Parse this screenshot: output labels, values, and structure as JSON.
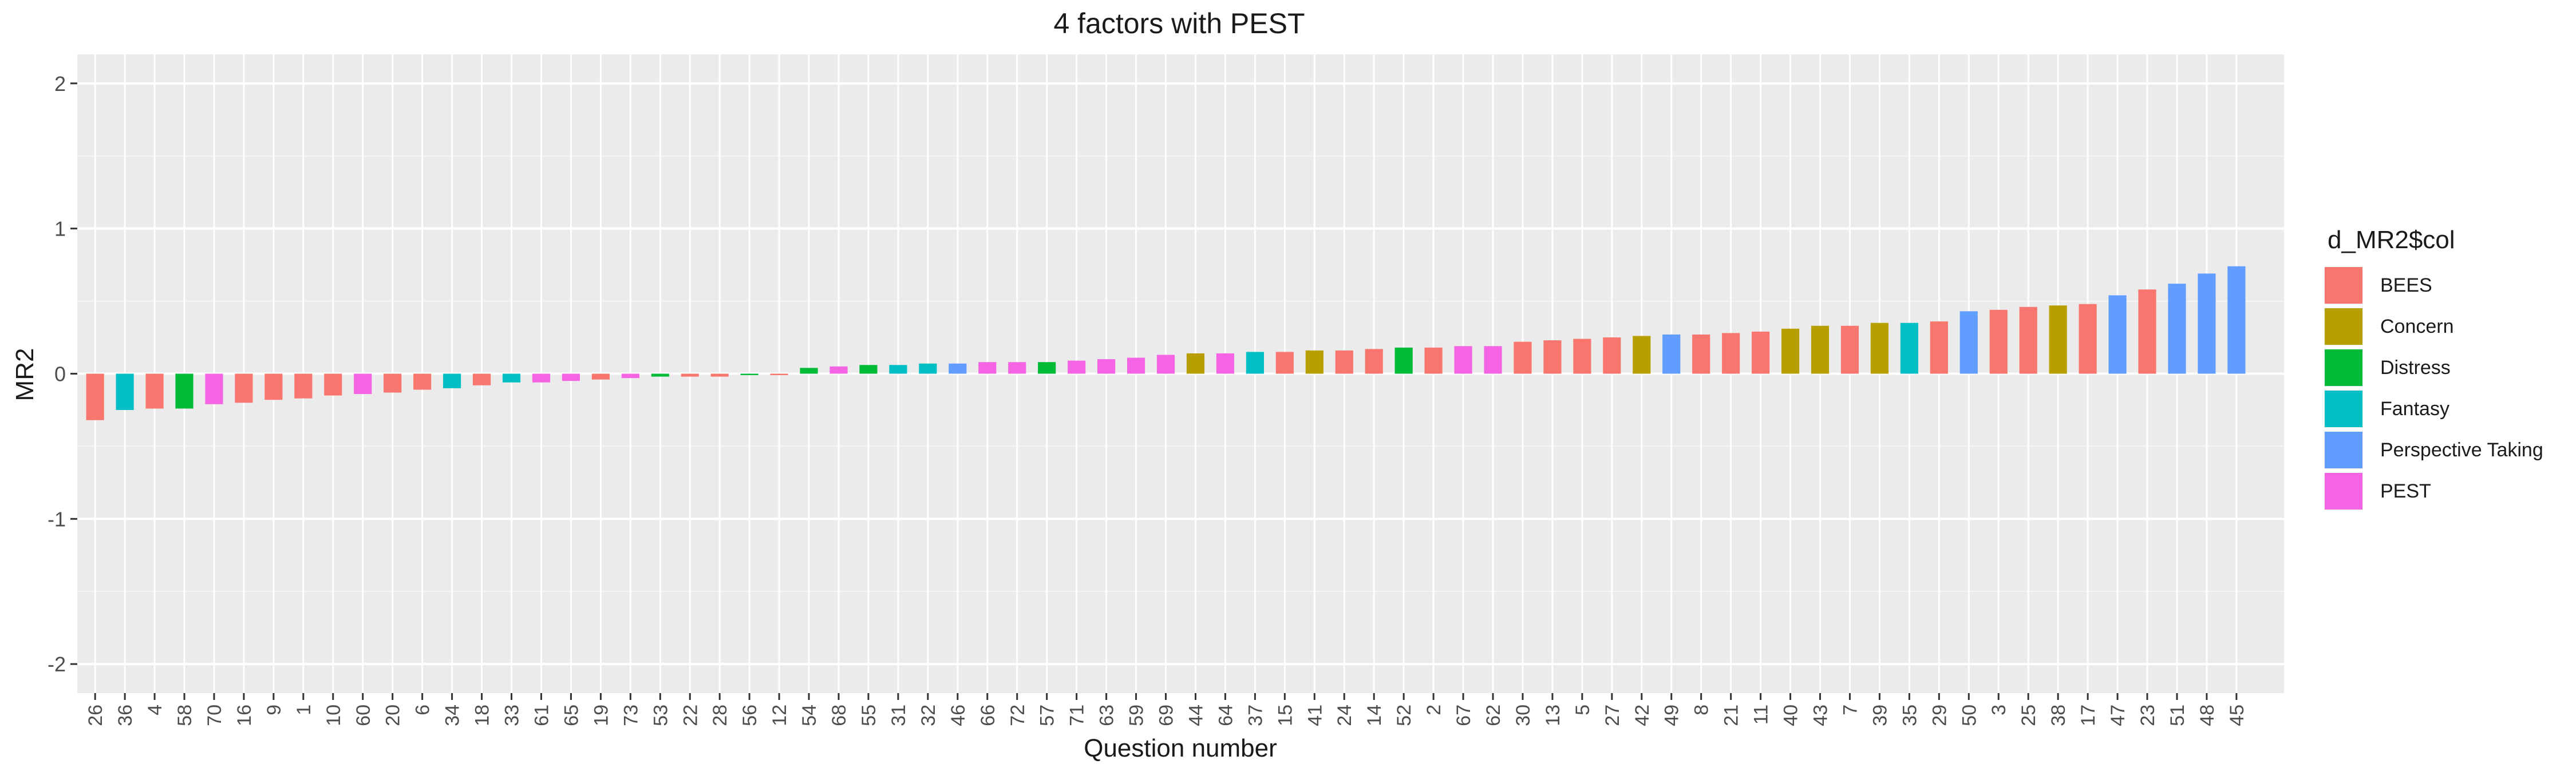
{
  "chart_data": {
    "type": "bar",
    "title": "4 factors with PEST",
    "xlabel": "Question number",
    "ylabel": "MR2",
    "ylim": [
      -2.2,
      2.2
    ],
    "y_ticks": [
      -2,
      -1,
      0,
      1,
      2
    ],
    "grid": true,
    "legend": {
      "title": "d_MR2$col",
      "placement": "right",
      "entries": [
        {
          "name": "BEES",
          "color": "#F8766D"
        },
        {
          "name": "Concern",
          "color": "#B79F00"
        },
        {
          "name": "Distress",
          "color": "#00BA38"
        },
        {
          "name": "Fantasy",
          "color": "#00BFC4"
        },
        {
          "name": "Perspective Taking",
          "color": "#619CFF"
        },
        {
          "name": "PEST",
          "color": "#F564E3"
        }
      ]
    },
    "categories": [
      "26",
      "36",
      "4",
      "58",
      "70",
      "16",
      "9",
      "1",
      "10",
      "60",
      "20",
      "6",
      "34",
      "18",
      "33",
      "61",
      "65",
      "19",
      "73",
      "53",
      "22",
      "28",
      "56",
      "12",
      "54",
      "68",
      "55",
      "31",
      "32",
      "46",
      "66",
      "72",
      "57",
      "71",
      "63",
      "59",
      "69",
      "44",
      "64",
      "37",
      "15",
      "41",
      "24",
      "14",
      "52",
      "2",
      "67",
      "62",
      "30",
      "13",
      "5",
      "27",
      "42",
      "49",
      "8",
      "21",
      "11",
      "40",
      "43",
      "7",
      "39",
      "35",
      "29",
      "50",
      "3",
      "25",
      "38",
      "17",
      "47",
      "23",
      "51",
      "48",
      "45"
    ],
    "values": [
      -0.32,
      -0.25,
      -0.24,
      -0.24,
      -0.21,
      -0.2,
      -0.18,
      -0.17,
      -0.15,
      -0.14,
      -0.13,
      -0.11,
      -0.1,
      -0.08,
      -0.06,
      -0.06,
      -0.05,
      -0.04,
      -0.03,
      -0.02,
      -0.02,
      -0.02,
      -0.01,
      -0.01,
      0.04,
      0.05,
      0.06,
      0.06,
      0.07,
      0.07,
      0.08,
      0.08,
      0.08,
      0.09,
      0.1,
      0.11,
      0.13,
      0.14,
      0.14,
      0.15,
      0.15,
      0.16,
      0.16,
      0.17,
      0.18,
      0.18,
      0.19,
      0.19,
      0.22,
      0.23,
      0.24,
      0.25,
      0.26,
      0.27,
      0.27,
      0.28,
      0.29,
      0.31,
      0.33,
      0.33,
      0.35,
      0.35,
      0.36,
      0.43,
      0.44,
      0.46,
      0.47,
      0.48,
      0.54,
      0.58,
      0.62,
      0.69,
      0.74
    ],
    "groups": [
      "BEES",
      "Fantasy",
      "BEES",
      "Distress",
      "PEST",
      "BEES",
      "BEES",
      "BEES",
      "BEES",
      "PEST",
      "BEES",
      "BEES",
      "Fantasy",
      "BEES",
      "Fantasy",
      "PEST",
      "PEST",
      "BEES",
      "PEST",
      "Distress",
      "BEES",
      "BEES",
      "Distress",
      "BEES",
      "Distress",
      "PEST",
      "Distress",
      "Fantasy",
      "Fantasy",
      "Perspective Taking",
      "PEST",
      "PEST",
      "Distress",
      "PEST",
      "PEST",
      "PEST",
      "PEST",
      "Concern",
      "PEST",
      "Fantasy",
      "BEES",
      "Concern",
      "BEES",
      "BEES",
      "Distress",
      "BEES",
      "PEST",
      "PEST",
      "BEES",
      "BEES",
      "BEES",
      "BEES",
      "Concern",
      "Perspective Taking",
      "BEES",
      "BEES",
      "BEES",
      "Concern",
      "Concern",
      "BEES",
      "Concern",
      "Fantasy",
      "BEES",
      "Perspective Taking",
      "BEES",
      "BEES",
      "Concern",
      "BEES",
      "Perspective Taking",
      "BEES",
      "Perspective Taking",
      "Perspective Taking",
      "Perspective Taking"
    ]
  }
}
